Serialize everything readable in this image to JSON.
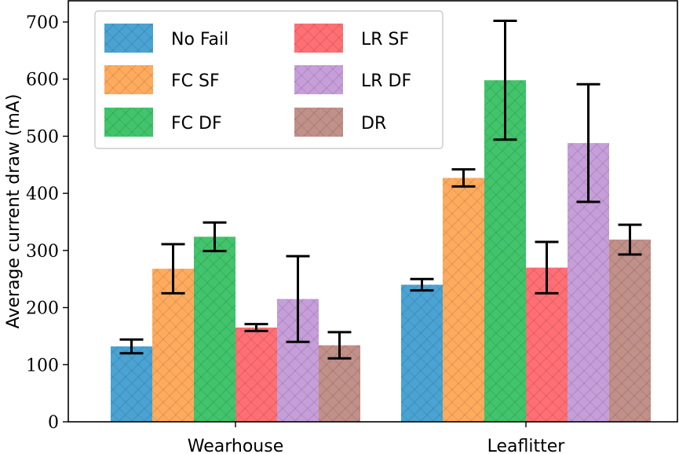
{
  "chart_data": {
    "type": "bar",
    "title": "",
    "xlabel": "",
    "ylabel": "Average current draw (mA)",
    "ylim": [
      0,
      700
    ],
    "yticks": [
      0,
      100,
      200,
      300,
      400,
      500,
      600,
      700
    ],
    "grid": false,
    "legend_position": "top-left",
    "categories": [
      "Wearhouse",
      "Leaflitter"
    ],
    "series": [
      {
        "name": "No Fail",
        "color": "#4aa3d3",
        "values": [
          132,
          240
        ],
        "error": [
          12,
          10
        ]
      },
      {
        "name": "FC SF",
        "color": "#ffab5e",
        "values": [
          268,
          427
        ],
        "error": [
          43,
          15
        ]
      },
      {
        "name": "FC DF",
        "color": "#41c46b",
        "values": [
          324,
          598
        ],
        "error": [
          25,
          104
        ]
      },
      {
        "name": "LR SF",
        "color": "#ff6f74",
        "values": [
          165,
          270
        ],
        "error": [
          6,
          45
        ]
      },
      {
        "name": "LR DF",
        "color": "#c69ed9",
        "values": [
          215,
          488
        ],
        "error": [
          75,
          103
        ]
      },
      {
        "name": "DR",
        "color": "#c09089",
        "values": [
          134,
          319
        ],
        "error": [
          23,
          26
        ]
      }
    ]
  }
}
